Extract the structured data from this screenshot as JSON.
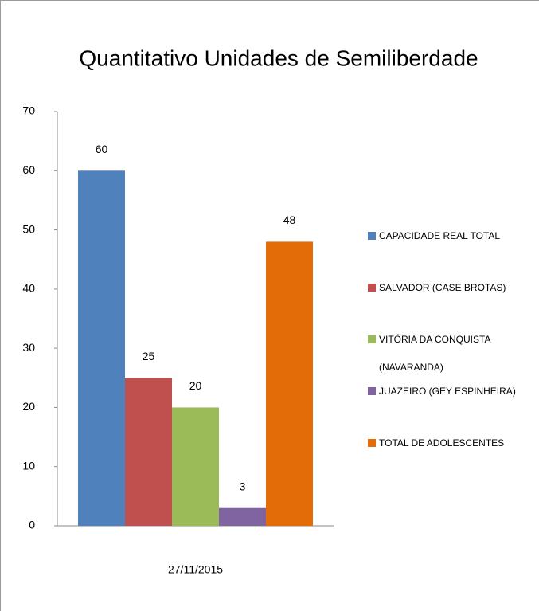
{
  "chart_data": {
    "type": "bar",
    "title": "Quantitativo Unidades de Semiliberdade",
    "categories": [
      "27/11/2015"
    ],
    "series": [
      {
        "name": "CAPACIDADE REAL TOTAL",
        "color": "#4f81bd",
        "values": [
          60
        ]
      },
      {
        "name": "SALVADOR (CASE BROTAS)",
        "color": "#c0504d",
        "values": [
          25
        ]
      },
      {
        "name": "VITÓRIA DA CONQUISTA (NAVARANDA)",
        "color": "#9bbb59",
        "values": [
          20
        ]
      },
      {
        "name": "JUAZEIRO (GEY ESPINHEIRA)",
        "color": "#8064a2",
        "values": [
          3
        ]
      },
      {
        "name": "TOTAL DE ADOLESCENTES",
        "color": "#e36c09",
        "values": [
          48
        ]
      }
    ],
    "ylim": [
      0,
      70
    ],
    "yticks": [
      0,
      10,
      20,
      30,
      40,
      50,
      60,
      70
    ],
    "grid": false,
    "legend": "right"
  }
}
